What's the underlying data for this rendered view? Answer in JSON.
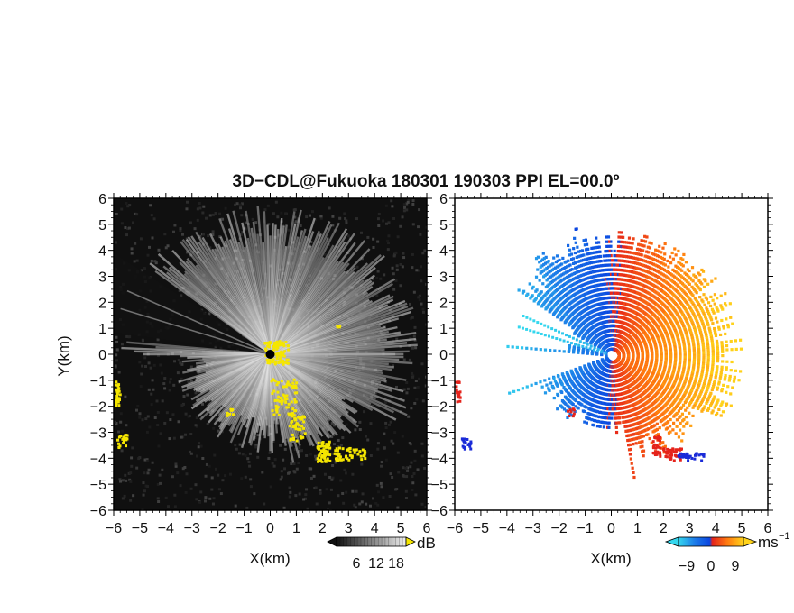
{
  "title": "3D−CDL@Fukuoka 180301 190303 PPI EL=00.0º",
  "colors": {
    "frame": "#000000",
    "echo_yellow": "#f5e600",
    "reflectivity_background": "#101010"
  },
  "chart_data": [
    {
      "type": "heatmap",
      "panel": "reflectivity",
      "xlabel": "X(km)",
      "ylabel": "Y(km)",
      "xlim": [
        -6,
        6
      ],
      "ylim": [
        -6,
        6
      ],
      "xticks": [
        "−6",
        "−5",
        "−4",
        "−3",
        "−2",
        "−1",
        "0",
        "1",
        "2",
        "3",
        "4",
        "5",
        "6"
      ],
      "yticks": [
        "−6",
        "−5",
        "−4",
        "−3",
        "−2",
        "−1",
        "0",
        "1",
        "2",
        "3",
        "4",
        "5",
        "6"
      ],
      "colorbar": {
        "unit": "dB",
        "ticks": [
          "6",
          "12",
          "18"
        ],
        "range": [
          0,
          21
        ],
        "palette": "black-to-white, yellow overflow"
      },
      "radar_origin": [
        0,
        0
      ],
      "blanked_sector_deg": [
        145,
        175
      ]
    },
    {
      "type": "heatmap",
      "panel": "radial velocity",
      "xlabel": "X(km)",
      "ylabel": "",
      "xlim": [
        -6,
        6
      ],
      "ylim": [
        -6,
        6
      ],
      "xticks": [
        "−6",
        "−5",
        "−4",
        "−3",
        "−2",
        "−1",
        "0",
        "1",
        "2",
        "3",
        "4",
        "5",
        "6"
      ],
      "yticks": [
        "−6",
        "−5",
        "−4",
        "−3",
        "−2",
        "−1",
        "0",
        "1",
        "2",
        "3",
        "4",
        "5",
        "6"
      ],
      "colorbar": {
        "unit": "ms",
        "unit_exp": "−1",
        "ticks": [
          "−9",
          "0",
          "9"
        ],
        "range": [
          -12,
          12
        ],
        "palette": "cyan-blue-red-orange-yellow"
      },
      "radar_origin": [
        0,
        0
      ],
      "wind": "approaching west of radar (negative), receding east of radar (positive)"
    }
  ]
}
